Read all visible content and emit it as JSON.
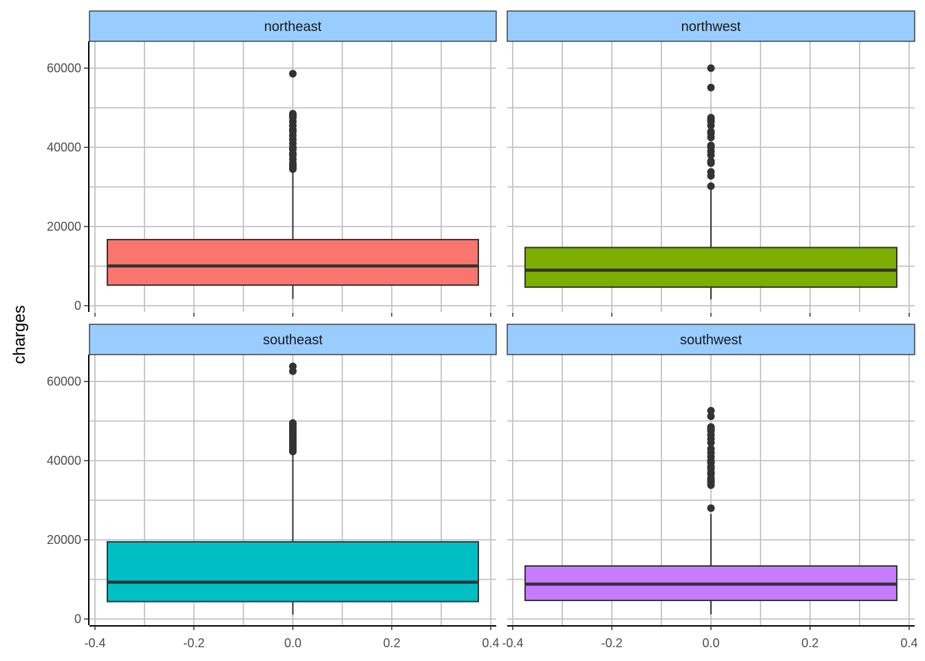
{
  "chart_data": {
    "type": "boxplot",
    "facet_by": "region",
    "xlabel": "",
    "ylabel": "charges",
    "xlim": [
      -0.4,
      0.4
    ],
    "ylim": [
      0,
      64000
    ],
    "x_ticks": [
      -0.4,
      -0.2,
      0.0,
      0.2,
      0.4
    ],
    "x_tick_labels": [
      "-0.4",
      "-0.2",
      "0.0",
      "0.2",
      "0.4"
    ],
    "y_ticks": [
      0,
      20000,
      40000,
      60000
    ],
    "y_tick_labels": [
      "0",
      "20000",
      "40000",
      "60000"
    ],
    "grid": true,
    "strip_color": "#99ccff",
    "box_x_range": [
      -0.375,
      0.375
    ],
    "panels": [
      {
        "region": "northeast",
        "color": "#f8766d",
        "box": {
          "min": 1700,
          "q1": 5200,
          "median": 10050,
          "q3": 16700,
          "max": 34000
        },
        "outliers": [
          34500,
          35000,
          35500,
          36000,
          37000,
          38000,
          38500,
          39500,
          40000,
          41000,
          42000,
          43000,
          44000,
          44500,
          45500,
          46500,
          47500,
          48000,
          48500,
          58600
        ]
      },
      {
        "region": "northwest",
        "color": "#7cae00",
        "box": {
          "min": 1600,
          "q1": 4700,
          "median": 8970,
          "q3": 14700,
          "max": 29500
        },
        "outliers": [
          30200,
          32800,
          33800,
          36000,
          36500,
          38000,
          39000,
          40000,
          40500,
          42500,
          43500,
          44000,
          45500,
          46500,
          47000,
          47500,
          55100,
          60000
        ]
      },
      {
        "region": "southeast",
        "color": "#00bfc4",
        "box": {
          "min": 1100,
          "q1": 4400,
          "median": 9300,
          "q3": 19500,
          "max": 42000
        },
        "outliers": [
          42300,
          42800,
          43500,
          44000,
          44500,
          45000,
          45500,
          46000,
          46500,
          47000,
          47500,
          48000,
          48500,
          49000,
          49500,
          62600,
          63800
        ]
      },
      {
        "region": "southwest",
        "color": "#c77cff",
        "box": {
          "min": 1200,
          "q1": 4700,
          "median": 8800,
          "q3": 13400,
          "max": 26500
        },
        "outliers": [
          28000,
          33800,
          34500,
          35000,
          35500,
          36500,
          37000,
          38000,
          38500,
          39500,
          40000,
          41000,
          42000,
          43000,
          44500,
          45500,
          46500,
          47500,
          48000,
          48500,
          51200,
          52600
        ]
      }
    ]
  }
}
